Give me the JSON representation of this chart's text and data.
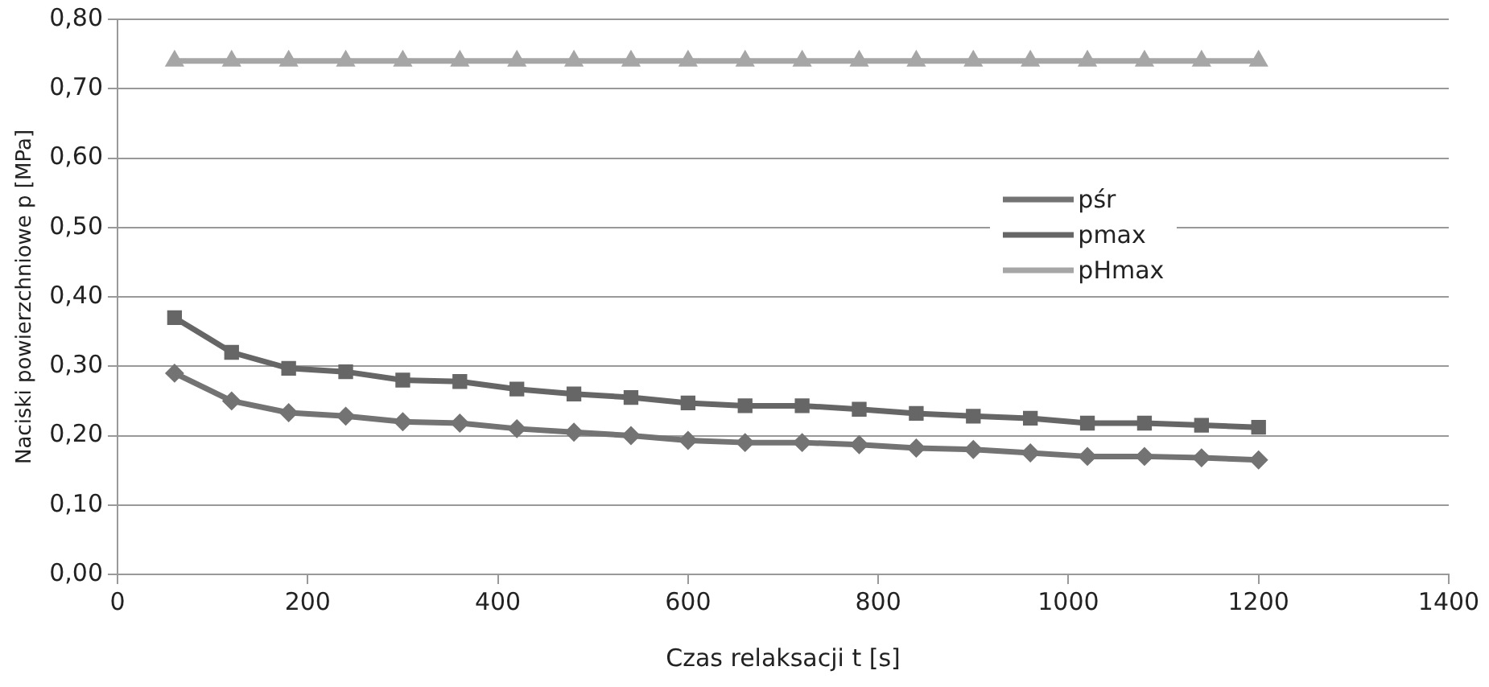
{
  "chart_data": {
    "type": "line",
    "xlabel": "Czas relaksacji t [s]",
    "ylabel": "Naciski powierzchniowe p [MPa]",
    "x": [
      60,
      120,
      180,
      240,
      300,
      360,
      420,
      480,
      540,
      600,
      660,
      720,
      780,
      840,
      900,
      960,
      1020,
      1080,
      1140,
      1200
    ],
    "series": [
      {
        "name": "pśr",
        "color": "#737373",
        "marker": "diamond",
        "values": [
          0.29,
          0.25,
          0.233,
          0.228,
          0.22,
          0.218,
          0.21,
          0.205,
          0.2,
          0.193,
          0.19,
          0.19,
          0.187,
          0.182,
          0.18,
          0.175,
          0.17,
          0.17,
          0.168,
          0.165
        ]
      },
      {
        "name": "pmax",
        "color": "#666666",
        "marker": "square",
        "values": [
          0.37,
          0.32,
          0.297,
          0.292,
          0.28,
          0.278,
          0.267,
          0.26,
          0.255,
          0.247,
          0.243,
          0.243,
          0.238,
          0.232,
          0.228,
          0.225,
          0.218,
          0.218,
          0.215,
          0.212
        ]
      },
      {
        "name": "pHmax",
        "color": "#a6a6a6",
        "marker": "triangle",
        "values": [
          0.74,
          0.74,
          0.74,
          0.74,
          0.74,
          0.74,
          0.74,
          0.74,
          0.74,
          0.74,
          0.74,
          0.74,
          0.74,
          0.74,
          0.74,
          0.74,
          0.74,
          0.74,
          0.74,
          0.74
        ]
      }
    ],
    "xlim": [
      0,
      1400
    ],
    "xticks": [
      0,
      200,
      400,
      600,
      800,
      1000,
      1200,
      1400
    ],
    "ylim": [
      0,
      0.8
    ],
    "yticks": [
      {
        "value": 0,
        "label": "0,00"
      },
      {
        "value": 0.1,
        "label": "0,10"
      },
      {
        "value": 0.2,
        "label": "0,20"
      },
      {
        "value": 0.3,
        "label": "0,30"
      },
      {
        "value": 0.4,
        "label": "0,40"
      },
      {
        "value": 0.5,
        "label": "0,50"
      },
      {
        "value": 0.6,
        "label": "0,60"
      },
      {
        "value": 0.7,
        "label": "0,70"
      },
      {
        "value": 0.8,
        "label": "0,80"
      }
    ],
    "grid": "y",
    "legend": "right",
    "line_style": "solid"
  }
}
